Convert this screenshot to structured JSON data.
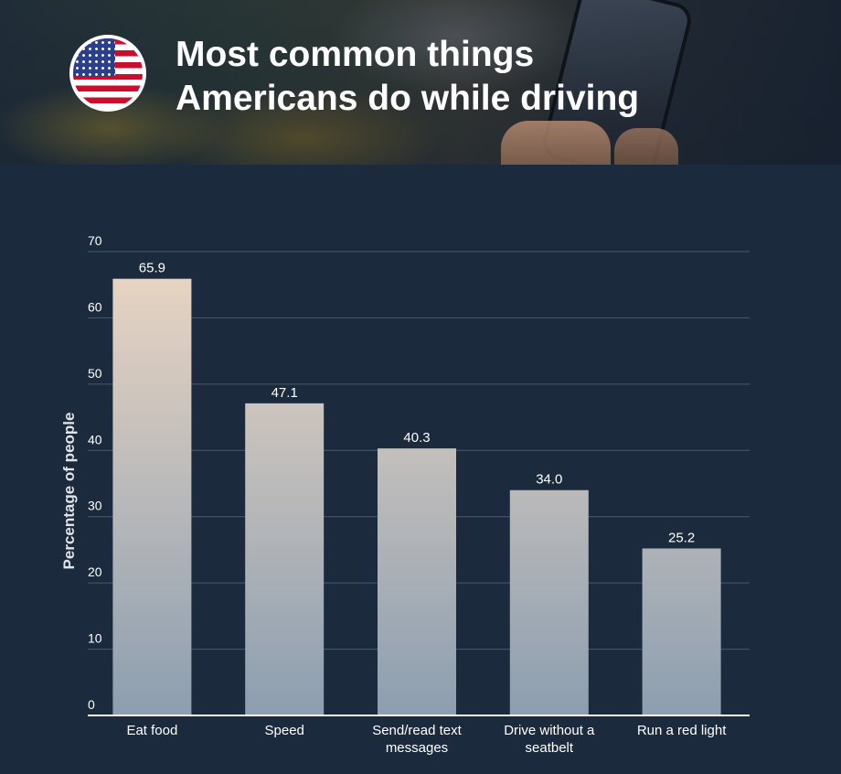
{
  "header": {
    "title_line1": "Most common things",
    "title_line2": "Americans do while driving",
    "flag_icon": "us-flag-icon"
  },
  "colors": {
    "background": "#1b2a3d",
    "bar_top": "#ecd7c4",
    "bar_bottom": "#8c9eb0",
    "grid": "#4a5a6c",
    "text": "#ffffff"
  },
  "chart_data": {
    "type": "bar",
    "title": "Most common things Americans do while driving",
    "ylabel": "Percentage of people",
    "xlabel": "",
    "ylim": [
      0,
      70
    ],
    "yticks": [
      0,
      10,
      20,
      30,
      40,
      50,
      60,
      70
    ],
    "grid": true,
    "categories": [
      [
        "Eat food"
      ],
      [
        "Speed"
      ],
      [
        "Send/read text",
        "messages"
      ],
      [
        "Drive without a",
        "seatbelt"
      ],
      [
        "Run a red light"
      ]
    ],
    "values": [
      65.9,
      47.1,
      40.3,
      34.0,
      25.2
    ],
    "value_labels": [
      "65.9",
      "47.1",
      "40.3",
      "34.0",
      "25.2"
    ]
  }
}
